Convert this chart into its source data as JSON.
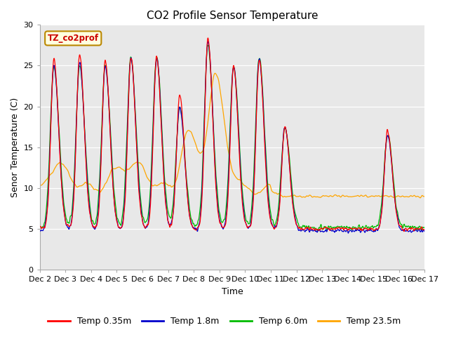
{
  "title": "CO2 Profile Sensor Temperature",
  "xlabel": "Time",
  "ylabel": "Senor Temperature (C)",
  "ylim": [
    0,
    30
  ],
  "xtick_labels": [
    "Dec 2",
    "Dec 3",
    "Dec 4",
    "Dec 5",
    "Dec 6",
    "Dec 7",
    "Dec 8",
    "Dec 9",
    "Dec 10",
    "Dec 11",
    "Dec 12",
    "Dec 13",
    "Dec 14",
    "Dec 15",
    "Dec 16",
    "Dec 17"
  ],
  "colors": {
    "Temp 0.35m": "#FF0000",
    "Temp 1.8m": "#0000CC",
    "Temp 6.0m": "#00BB00",
    "Temp 23.5m": "#FFA500"
  },
  "legend_label": "TZ_co2prof",
  "bg_color": "#E8E8E8",
  "fig_bg_color": "#FFFFFF",
  "title_fontsize": 11,
  "axis_fontsize": 9,
  "tick_fontsize": 8,
  "legend_fontsize": 9
}
